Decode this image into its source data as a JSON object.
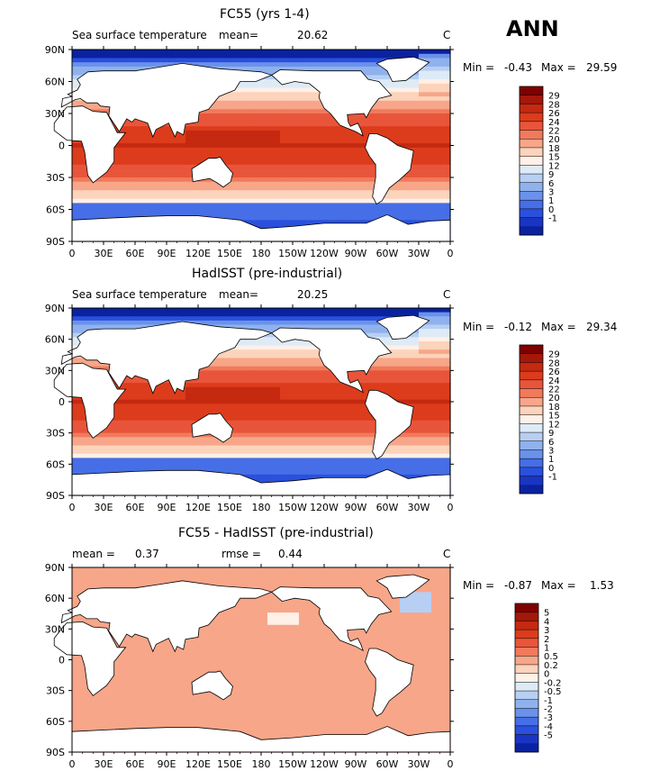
{
  "figure": {
    "season_label": "ANN"
  },
  "chart_data": [
    {
      "type": "heatmap",
      "title": "FC55 (yrs 1-4)",
      "left_label": "Sea surface temperature",
      "stat1_label": "mean=",
      "stat1_value": "20.62",
      "units": "C",
      "minmax": {
        "min_label": "Min =",
        "min": "-0.43",
        "max_label": "Max =",
        "max": "29.59"
      },
      "x_ticks": [
        "0",
        "30E",
        "60E",
        "90E",
        "120E",
        "150E",
        "180",
        "150W",
        "120W",
        "90W",
        "60W",
        "30W",
        "0"
      ],
      "y_ticks": [
        "90N",
        "60N",
        "30N",
        "0",
        "30S",
        "60S",
        "90S"
      ],
      "ylim": [
        -90,
        90
      ],
      "colorbar": {
        "labels": [
          "29",
          "28",
          "26",
          "24",
          "22",
          "20",
          "18",
          "15",
          "12",
          "9",
          "6",
          "3",
          "1",
          "0",
          "-1"
        ],
        "colors": [
          "#800000",
          "#a3180a",
          "#c52910",
          "#dc3c1c",
          "#e8553a",
          "#f07a5c",
          "#f7a689",
          "#fcd3bb",
          "#fff0e8",
          "#deebf7",
          "#b7cff3",
          "#8fb2ee",
          "#6a92ea",
          "#466ee6",
          "#2a50dc",
          "#1a35c4",
          "#0a22a0"
        ]
      }
    },
    {
      "type": "heatmap",
      "title": "HadISST (pre-industrial)",
      "left_label": "Sea surface temperature",
      "stat1_label": "mean=",
      "stat1_value": "20.25",
      "units": "C",
      "minmax": {
        "min_label": "Min =",
        "min": "-0.12",
        "max_label": "Max =",
        "max": "29.34"
      },
      "x_ticks": [
        "0",
        "30E",
        "60E",
        "90E",
        "120E",
        "150E",
        "180",
        "150W",
        "120W",
        "90W",
        "60W",
        "30W",
        "0"
      ],
      "y_ticks": [
        "90N",
        "60N",
        "30N",
        "0",
        "30S",
        "60S",
        "90S"
      ],
      "ylim": [
        -90,
        90
      ],
      "colorbar": {
        "labels": [
          "29",
          "28",
          "26",
          "24",
          "22",
          "20",
          "18",
          "15",
          "12",
          "9",
          "6",
          "3",
          "1",
          "0",
          "-1"
        ],
        "colors": [
          "#800000",
          "#a3180a",
          "#c52910",
          "#dc3c1c",
          "#e8553a",
          "#f07a5c",
          "#f7a689",
          "#fcd3bb",
          "#fff0e8",
          "#deebf7",
          "#b7cff3",
          "#8fb2ee",
          "#6a92ea",
          "#466ee6",
          "#2a50dc",
          "#1a35c4",
          "#0a22a0"
        ]
      }
    },
    {
      "type": "heatmap",
      "title": "FC55 - HadISST (pre-industrial)",
      "stat1_label": "mean =",
      "stat1_value": "0.37",
      "stat2_label": "rmse =",
      "stat2_value": "0.44",
      "units": "C",
      "minmax": {
        "min_label": "Min =",
        "min": "-0.87",
        "max_label": "Max =",
        "max": "1.53"
      },
      "x_ticks": [
        "0",
        "30E",
        "60E",
        "90E",
        "120E",
        "150E",
        "180",
        "150W",
        "120W",
        "90W",
        "60W",
        "30W",
        "0"
      ],
      "y_ticks": [
        "90N",
        "60N",
        "30N",
        "0",
        "30S",
        "60S",
        "90S"
      ],
      "ylim": [
        -90,
        90
      ],
      "colorbar": {
        "labels": [
          "5",
          "4",
          "3",
          "2",
          "1",
          "0.5",
          "0.2",
          "0",
          "-0.2",
          "-0.5",
          "-1",
          "-2",
          "-3",
          "-4",
          "-5"
        ],
        "colors": [
          "#800000",
          "#a3180a",
          "#c52910",
          "#dc3c1c",
          "#e8553a",
          "#f07a5c",
          "#f7a689",
          "#fcd3bb",
          "#fff0e8",
          "#deebf7",
          "#b7cff3",
          "#8fb2ee",
          "#6a92ea",
          "#466ee6",
          "#2a50dc",
          "#1a35c4",
          "#0a22a0"
        ]
      }
    }
  ]
}
